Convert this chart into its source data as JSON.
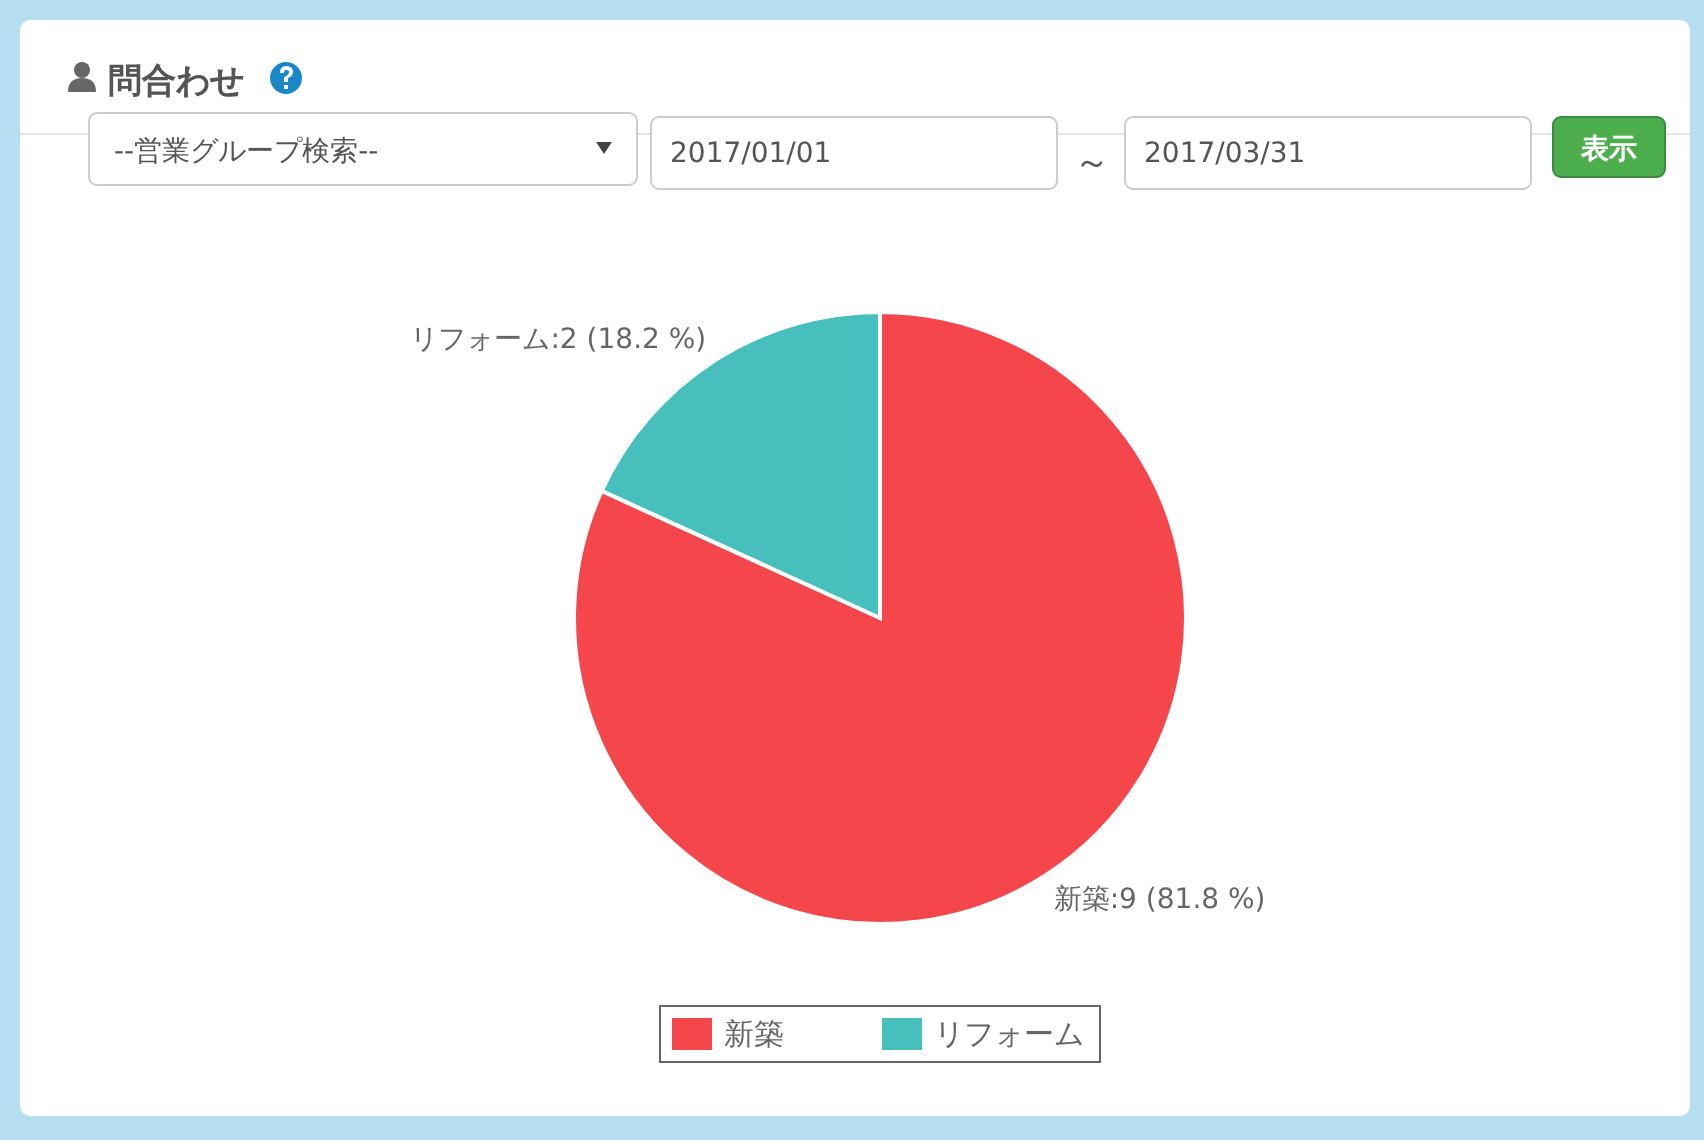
{
  "chart_data": {
    "type": "pie",
    "title": "問合わせ",
    "annotations": [
      "--営業グループ検索--",
      "2017/01/01",
      "～",
      "2017/03/31",
      "表示"
    ],
    "categories": [
      "新築",
      "リフォーム"
    ],
    "values": [
      9,
      2
    ],
    "colors": [
      "#f5474b",
      "#47bfbc"
    ],
    "value_labels": [
      "新築:9 (81.8 %)",
      "リフォーム:2 (18.2 %)"
    ],
    "legend": "bottom"
  }
}
